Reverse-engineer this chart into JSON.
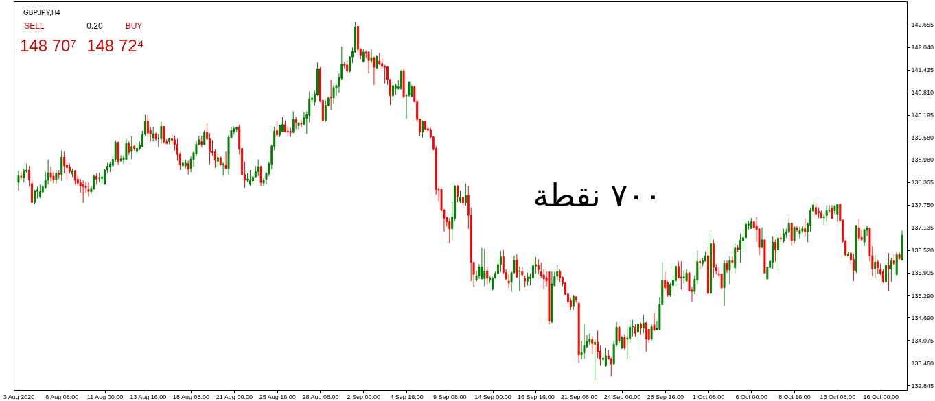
{
  "chart_data": {
    "type": "candlestick",
    "title": "GBPJPY,H4",
    "categories": [
      "3 Aug 2020",
      null,
      null,
      null,
      null,
      null,
      null,
      null,
      null,
      null,
      null,
      null,
      null,
      null,
      null,
      null,
      "6 Aug 08:00",
      null,
      null,
      null,
      null,
      null,
      null,
      null,
      null,
      null,
      null,
      null,
      null,
      null,
      null,
      null,
      "11 Aug 00:00",
      null,
      null,
      null,
      null,
      null,
      null,
      null,
      null,
      null,
      null,
      null,
      null,
      null,
      null,
      null,
      "13 Aug 16:00",
      null,
      null,
      null,
      null,
      null,
      null,
      null,
      null,
      null,
      null,
      null,
      null,
      null,
      null,
      null,
      "18 Aug 08:00",
      null,
      null,
      null,
      null,
      null,
      null,
      null,
      null,
      null,
      null,
      null,
      null,
      null,
      null,
      null,
      "21 Aug 00:00",
      null,
      null,
      null,
      null,
      null,
      null,
      null,
      null,
      null,
      null,
      null,
      null,
      null,
      null,
      null,
      "25 Aug 16:00",
      null,
      null,
      null,
      null,
      null,
      null,
      null,
      null,
      null,
      null,
      null,
      null,
      null,
      null,
      null,
      "28 Aug 08:00",
      null,
      null,
      null,
      null,
      null,
      null,
      null,
      null,
      null,
      null,
      null,
      null,
      null,
      null,
      null,
      "2 Sep 00:00",
      null,
      null,
      null,
      null,
      null,
      null,
      null,
      null,
      null,
      null,
      null,
      null,
      null,
      null,
      null,
      "4 Sep 16:00",
      null,
      null,
      null,
      null,
      null,
      null,
      null,
      null,
      null,
      null,
      null,
      null,
      null,
      null,
      null,
      "9 Sep 08:00",
      null,
      null,
      null,
      null,
      null,
      null,
      null,
      null,
      null,
      null,
      null,
      null,
      null,
      null,
      null,
      "14 Sep 00:00",
      null,
      null,
      null,
      null,
      null,
      null,
      null,
      null,
      null,
      null,
      null,
      null,
      null,
      null,
      null,
      "16 Sep 16:00",
      null,
      null,
      null,
      null,
      null,
      null,
      null,
      null,
      null,
      null,
      null,
      null,
      null,
      null,
      null,
      "21 Sep 08:00",
      null,
      null,
      null,
      null,
      null,
      null,
      null,
      null,
      null,
      null,
      null,
      null,
      null,
      null,
      null,
      "24 Sep 00:00",
      null,
      null,
      null,
      null,
      null,
      null,
      null,
      null,
      null,
      null,
      null,
      null,
      null,
      null,
      null,
      "28 Sep 16:00",
      null,
      null,
      null,
      null,
      null,
      null,
      null,
      null,
      null,
      null,
      null,
      null,
      null,
      null,
      null,
      "1 Oct 08:00",
      null,
      null,
      null,
      null,
      null,
      null,
      null,
      null,
      null,
      null,
      null,
      null,
      null,
      null,
      null,
      "6 Oct 00:00",
      null,
      null,
      null,
      null,
      null,
      null,
      null,
      null,
      null,
      null,
      null,
      null,
      null,
      null,
      null,
      "8 Oct 16:00",
      null,
      null,
      null,
      null,
      null,
      null,
      null,
      null,
      null,
      null,
      null,
      null,
      null,
      null,
      null,
      "13 Oct 08:00",
      null,
      null,
      null,
      null,
      null,
      null,
      null,
      null,
      null,
      null,
      null,
      null,
      null,
      null,
      null,
      "16 Oct 00:00",
      null,
      null,
      null,
      null,
      null,
      null,
      null,
      null
    ],
    "ohlc": [
      [
        138.36,
        138.68,
        138.14,
        138.54
      ],
      [
        138.53,
        138.64,
        138.45,
        138.51
      ],
      [
        138.49,
        138.73,
        138.36,
        138.68
      ],
      [
        138.66,
        138.87,
        138.61,
        138.7
      ],
      [
        138.7,
        138.81,
        138.24,
        138.42
      ],
      [
        138.33,
        138.42,
        137.81,
        137.82
      ],
      [
        137.82,
        138.16,
        137.77,
        138.14
      ],
      [
        138.12,
        138.24,
        137.92,
        138.16
      ],
      [
        137.98,
        138.3,
        137.93,
        138.11
      ],
      [
        138.1,
        138.3,
        138.06,
        138.24
      ],
      [
        138.22,
        138.64,
        138.2,
        138.43
      ],
      [
        138.42,
        138.98,
        138.3,
        138.62
      ],
      [
        138.62,
        138.79,
        138.39,
        138.51
      ],
      [
        138.53,
        138.64,
        138.34,
        138.43
      ],
      [
        138.43,
        138.7,
        138.33,
        138.61
      ],
      [
        138.61,
        138.7,
        138.45,
        138.58
      ],
      [
        138.58,
        139.23,
        138.41,
        139.05
      ],
      [
        139.05,
        139.2,
        138.61,
        138.81
      ],
      [
        138.84,
        138.89,
        138.45,
        138.76
      ],
      [
        138.78,
        138.86,
        138.61,
        138.66
      ],
      [
        138.59,
        138.73,
        138.51,
        138.68
      ],
      [
        138.68,
        138.7,
        138.3,
        138.42
      ],
      [
        138.45,
        138.54,
        138.26,
        138.34
      ],
      [
        138.36,
        138.45,
        138.08,
        138.26
      ],
      [
        138.3,
        138.42,
        137.81,
        138.25
      ],
      [
        138.26,
        138.36,
        138.08,
        138.22
      ],
      [
        138.17,
        138.36,
        137.98,
        138.12
      ],
      [
        138.11,
        138.26,
        138.04,
        138.2
      ],
      [
        138.18,
        138.57,
        138.17,
        138.53
      ],
      [
        138.53,
        138.61,
        138.3,
        138.45
      ],
      [
        138.47,
        138.62,
        138.36,
        138.49
      ],
      [
        138.47,
        138.54,
        138.33,
        138.51
      ],
      [
        138.31,
        138.72,
        138.31,
        138.7
      ],
      [
        138.7,
        138.89,
        138.61,
        138.8
      ],
      [
        138.78,
        138.92,
        138.64,
        138.86
      ],
      [
        138.82,
        139.07,
        138.79,
        138.99
      ],
      [
        138.99,
        139.51,
        138.92,
        139.45
      ],
      [
        139.45,
        139.47,
        138.84,
        138.92
      ],
      [
        138.95,
        139.1,
        138.92,
        139.0
      ],
      [
        138.98,
        139.1,
        138.87,
        139.03
      ],
      [
        138.99,
        139.54,
        138.98,
        139.42
      ],
      [
        139.42,
        139.48,
        139.11,
        139.18
      ],
      [
        139.2,
        139.62,
        138.99,
        139.34
      ],
      [
        139.34,
        139.37,
        139.23,
        139.28
      ],
      [
        139.2,
        139.42,
        139.14,
        139.29
      ],
      [
        139.28,
        139.47,
        139.24,
        139.37
      ],
      [
        139.34,
        139.76,
        139.32,
        139.67
      ],
      [
        139.67,
        140.2,
        139.63,
        140.03
      ],
      [
        140.04,
        140.2,
        139.6,
        139.7
      ],
      [
        139.78,
        139.87,
        139.48,
        139.68
      ],
      [
        139.57,
        139.87,
        139.48,
        139.68
      ],
      [
        139.68,
        139.72,
        139.5,
        139.54
      ],
      [
        139.55,
        139.68,
        139.32,
        139.55
      ],
      [
        139.54,
        140.01,
        139.42,
        139.88
      ],
      [
        139.88,
        139.88,
        139.42,
        139.47
      ],
      [
        139.47,
        139.54,
        139.4,
        139.42
      ],
      [
        139.47,
        139.57,
        139.4,
        139.56
      ],
      [
        139.55,
        139.65,
        139.42,
        139.51
      ],
      [
        139.52,
        139.63,
        139.23,
        139.39
      ],
      [
        139.4,
        139.55,
        138.95,
        139.12
      ],
      [
        139.14,
        139.17,
        138.7,
        138.84
      ],
      [
        138.82,
        138.98,
        138.79,
        138.89
      ],
      [
        138.81,
        138.98,
        138.74,
        138.89
      ],
      [
        138.87,
        138.95,
        138.57,
        138.72
      ],
      [
        138.74,
        139.07,
        138.64,
        138.99
      ],
      [
        138.98,
        139.2,
        138.79,
        139.17
      ],
      [
        139.14,
        139.49,
        139.07,
        139.4
      ],
      [
        139.4,
        139.63,
        139.37,
        139.52
      ],
      [
        139.47,
        139.63,
        139.32,
        139.39
      ],
      [
        139.39,
        139.78,
        139.37,
        139.73
      ],
      [
        139.73,
        139.96,
        139.53,
        139.54
      ],
      [
        139.55,
        139.7,
        138.86,
        139.19
      ],
      [
        139.2,
        139.51,
        139.09,
        139.17
      ],
      [
        139.19,
        139.26,
        138.76,
        138.97
      ],
      [
        138.93,
        139.14,
        138.79,
        139.04
      ],
      [
        139.03,
        139.07,
        138.82,
        138.84
      ],
      [
        138.84,
        138.91,
        138.54,
        138.86
      ],
      [
        138.84,
        139.2,
        138.74,
        138.74
      ],
      [
        138.74,
        139.65,
        138.57,
        139.59
      ],
      [
        139.57,
        139.85,
        139.55,
        139.78
      ],
      [
        139.75,
        139.88,
        139.67,
        139.82
      ],
      [
        139.81,
        139.88,
        139.73,
        139.85
      ],
      [
        139.87,
        139.93,
        139.12,
        139.26
      ],
      [
        139.28,
        139.3,
        138.56,
        138.56
      ],
      [
        138.57,
        138.92,
        138.22,
        138.42
      ],
      [
        138.42,
        138.61,
        138.37,
        138.45
      ],
      [
        138.31,
        138.7,
        138.26,
        138.42
      ],
      [
        138.4,
        138.57,
        138.3,
        138.51
      ],
      [
        138.51,
        138.81,
        138.49,
        138.65
      ],
      [
        138.65,
        138.98,
        138.53,
        138.79
      ],
      [
        138.79,
        138.82,
        138.25,
        138.36
      ],
      [
        138.34,
        138.48,
        138.25,
        138.42
      ],
      [
        138.44,
        138.64,
        138.31,
        138.61
      ],
      [
        138.59,
        138.92,
        138.53,
        138.87
      ],
      [
        138.86,
        139.39,
        138.72,
        139.35
      ],
      [
        139.34,
        139.88,
        139.23,
        139.76
      ],
      [
        139.77,
        140.03,
        139.59,
        139.65
      ],
      [
        139.65,
        139.92,
        139.6,
        139.91
      ],
      [
        139.75,
        140.14,
        139.73,
        139.93
      ],
      [
        139.93,
        140.05,
        139.72,
        139.73
      ],
      [
        139.75,
        139.88,
        139.62,
        139.73
      ],
      [
        139.75,
        139.84,
        139.6,
        139.72
      ],
      [
        139.72,
        140.29,
        139.7,
        140.07
      ],
      [
        140.07,
        140.14,
        139.81,
        139.99
      ],
      [
        139.9,
        139.99,
        139.8,
        139.98
      ],
      [
        139.97,
        140.05,
        139.85,
        139.94
      ],
      [
        139.94,
        140.27,
        139.91,
        140.12
      ],
      [
        140.1,
        140.29,
        139.68,
        140.2
      ],
      [
        140.18,
        140.83,
        139.99,
        140.63
      ],
      [
        140.61,
        140.76,
        140.53,
        140.65
      ],
      [
        140.55,
        140.85,
        140.45,
        140.76
      ],
      [
        140.74,
        141.62,
        140.71,
        141.45
      ],
      [
        141.45,
        141.49,
        140.54,
        140.56
      ],
      [
        140.59,
        140.6,
        139.99,
        140.05
      ],
      [
        140.05,
        140.59,
        140.01,
        140.46
      ],
      [
        140.45,
        140.69,
        140.43,
        140.65
      ],
      [
        140.68,
        141.15,
        140.34,
        140.66
      ],
      [
        140.66,
        141.01,
        140.49,
        140.94
      ],
      [
        140.92,
        141.02,
        140.71,
        140.99
      ],
      [
        140.97,
        141.32,
        140.8,
        141.21
      ],
      [
        141.19,
        142.05,
        141.14,
        141.57
      ],
      [
        141.57,
        141.63,
        141.46,
        141.54
      ],
      [
        141.55,
        141.66,
        141.35,
        141.38
      ],
      [
        141.38,
        141.8,
        141.35,
        141.77
      ],
      [
        141.77,
        142.03,
        141.6,
        141.92
      ],
      [
        141.9,
        142.72,
        141.88,
        142.58
      ],
      [
        142.6,
        142.61,
        141.88,
        141.97
      ],
      [
        141.98,
        142.0,
        141.71,
        141.82
      ],
      [
        141.65,
        141.97,
        141.61,
        141.9
      ],
      [
        141.9,
        141.94,
        141.74,
        141.87
      ],
      [
        141.9,
        141.92,
        141.32,
        141.67
      ],
      [
        141.66,
        141.97,
        141.6,
        141.75
      ],
      [
        141.75,
        141.78,
        141.01,
        141.49
      ],
      [
        141.47,
        141.82,
        141.44,
        141.79
      ],
      [
        141.66,
        141.88,
        141.55,
        141.57
      ],
      [
        141.59,
        141.72,
        141.46,
        141.51
      ],
      [
        141.52,
        141.55,
        141.05,
        141.49
      ],
      [
        141.5,
        141.52,
        141.01,
        141.16
      ],
      [
        141.16,
        141.17,
        140.46,
        140.71
      ],
      [
        140.71,
        141.02,
        140.57,
        140.99
      ],
      [
        140.91,
        141.04,
        140.74,
        141.0
      ],
      [
        140.91,
        141.14,
        140.88,
        140.96
      ],
      [
        140.91,
        141.41,
        140.88,
        141.38
      ],
      [
        141.38,
        141.44,
        140.65,
        140.69
      ],
      [
        140.71,
        140.76,
        140.09,
        140.73
      ],
      [
        140.73,
        141.1,
        140.69,
        141.1
      ],
      [
        140.69,
        141.01,
        140.68,
        140.96
      ],
      [
        140.96,
        140.99,
        140.54,
        140.55
      ],
      [
        140.55,
        140.6,
        139.99,
        140.07
      ],
      [
        140.08,
        140.08,
        139.62,
        139.73
      ],
      [
        139.73,
        140.05,
        139.57,
        140.03
      ],
      [
        140.03,
        140.03,
        139.79,
        139.81
      ],
      [
        139.82,
        139.85,
        139.72,
        139.78
      ],
      [
        139.79,
        139.84,
        139.55,
        139.59
      ],
      [
        139.6,
        139.6,
        139.23,
        139.26
      ],
      [
        139.28,
        139.35,
        138.02,
        138.17
      ],
      [
        138.18,
        138.22,
        137.85,
        138.16
      ],
      [
        138.17,
        138.2,
        137.58,
        137.6
      ],
      [
        137.61,
        137.64,
        137.02,
        137.39
      ],
      [
        137.41,
        137.42,
        137.16,
        137.29
      ],
      [
        137.3,
        137.39,
        136.71,
        137.1
      ],
      [
        137.1,
        137.83,
        136.77,
        137.42
      ],
      [
        137.39,
        138.29,
        137.31,
        138.26
      ],
      [
        138.26,
        138.29,
        137.83,
        137.98
      ],
      [
        137.86,
        138.14,
        137.8,
        137.95
      ],
      [
        137.95,
        137.97,
        137.73,
        137.81
      ],
      [
        137.81,
        138.33,
        137.73,
        138.01
      ],
      [
        138.01,
        138.26,
        137.1,
        137.47
      ],
      [
        137.48,
        137.68,
        135.68,
        136.19
      ],
      [
        136.19,
        136.19,
        135.52,
        135.86
      ],
      [
        135.71,
        135.96,
        135.66,
        135.83
      ],
      [
        135.83,
        136.14,
        135.74,
        136.06
      ],
      [
        135.74,
        136.58,
        135.74,
        136.06
      ],
      [
        135.75,
        136.56,
        135.54,
        135.95
      ],
      [
        135.95,
        136.08,
        135.58,
        135.76
      ],
      [
        135.72,
        135.81,
        135.63,
        135.77
      ],
      [
        135.46,
        135.79,
        135.43,
        135.77
      ],
      [
        135.77,
        135.94,
        135.75,
        135.89
      ],
      [
        135.88,
        136.25,
        135.83,
        136.13
      ],
      [
        136.13,
        136.5,
        135.93,
        136.34
      ],
      [
        136.34,
        136.54,
        135.88,
        135.91
      ],
      [
        135.91,
        136.0,
        135.71,
        135.74
      ],
      [
        135.68,
        135.86,
        135.49,
        135.63
      ],
      [
        135.65,
        135.94,
        135.38,
        135.91
      ],
      [
        135.91,
        136.37,
        135.88,
        136.24
      ],
      [
        136.25,
        136.41,
        135.77,
        135.79
      ],
      [
        135.94,
        136.08,
        135.41,
        135.96
      ],
      [
        135.94,
        136.06,
        135.81,
        135.85
      ],
      [
        135.75,
        135.83,
        135.52,
        135.68
      ],
      [
        135.68,
        135.91,
        135.56,
        135.79
      ],
      [
        135.75,
        135.88,
        135.56,
        135.79
      ],
      [
        135.77,
        136.44,
        135.69,
        136.1
      ],
      [
        136.08,
        136.33,
        135.88,
        136.13
      ],
      [
        136.11,
        136.27,
        135.86,
        135.99
      ],
      [
        135.93,
        136.18,
        135.77,
        135.83
      ],
      [
        135.85,
        136.0,
        135.46,
        135.74
      ],
      [
        135.77,
        135.94,
        135.54,
        135.69
      ],
      [
        135.93,
        135.94,
        134.51,
        134.59
      ],
      [
        134.57,
        135.94,
        134.54,
        135.6
      ],
      [
        135.56,
        135.93,
        135.54,
        135.81
      ],
      [
        135.81,
        136.11,
        135.71,
        135.94
      ],
      [
        135.94,
        135.99,
        135.65,
        135.77
      ],
      [
        135.78,
        135.81,
        135.54,
        135.61
      ],
      [
        135.63,
        135.65,
        135.3,
        135.32
      ],
      [
        135.33,
        135.37,
        135.02,
        135.13
      ],
      [
        135.15,
        135.21,
        134.9,
        134.98
      ],
      [
        134.99,
        135.3,
        134.9,
        135.27
      ],
      [
        135.25,
        135.27,
        135.09,
        135.17
      ],
      [
        135.08,
        135.1,
        133.46,
        133.67
      ],
      [
        133.67,
        134.06,
        133.56,
        133.74
      ],
      [
        133.73,
        134.52,
        133.57,
        133.92
      ],
      [
        133.9,
        134.21,
        133.86,
        134.04
      ],
      [
        134.03,
        134.26,
        133.93,
        134.11
      ],
      [
        134.09,
        134.18,
        133.69,
        133.98
      ],
      [
        133.96,
        134.09,
        132.98,
        134.02
      ],
      [
        134.02,
        134.34,
        133.59,
        133.76
      ],
      [
        133.78,
        133.92,
        133.38,
        133.56
      ],
      [
        133.55,
        133.68,
        133.48,
        133.59
      ],
      [
        133.38,
        133.87,
        133.34,
        133.65
      ],
      [
        133.65,
        133.81,
        133.55,
        133.56
      ],
      [
        133.57,
        133.61,
        133.09,
        133.43
      ],
      [
        133.43,
        134.06,
        133.4,
        133.96
      ],
      [
        133.94,
        134.57,
        133.9,
        134.43
      ],
      [
        134.43,
        134.46,
        133.99,
        134.06
      ],
      [
        133.86,
        134.19,
        133.84,
        134.15
      ],
      [
        134.15,
        134.24,
        133.81,
        133.87
      ],
      [
        134.1,
        134.43,
        133.57,
        134.13
      ],
      [
        134.12,
        134.62,
        133.99,
        134.43
      ],
      [
        134.44,
        134.62,
        134.18,
        134.46
      ],
      [
        134.43,
        134.51,
        134.17,
        134.26
      ],
      [
        134.29,
        134.55,
        134.04,
        134.51
      ],
      [
        134.52,
        134.55,
        134.24,
        134.4
      ],
      [
        134.4,
        134.77,
        134.26,
        134.54
      ],
      [
        134.54,
        134.57,
        133.76,
        134.11
      ],
      [
        134.37,
        134.38,
        134.01,
        134.09
      ],
      [
        134.11,
        134.52,
        134.06,
        134.44
      ],
      [
        134.49,
        134.83,
        134.34,
        134.34
      ],
      [
        134.36,
        134.59,
        134.34,
        134.4
      ],
      [
        134.37,
        135.24,
        134.34,
        135.05
      ],
      [
        135.04,
        136.19,
        135.04,
        135.71
      ],
      [
        135.71,
        135.93,
        135.43,
        135.5
      ],
      [
        135.63,
        135.68,
        135.25,
        135.3
      ],
      [
        135.29,
        135.63,
        135.25,
        135.58
      ],
      [
        135.56,
        135.74,
        135.4,
        135.71
      ],
      [
        135.69,
        136.1,
        135.55,
        136.08
      ],
      [
        136.08,
        136.21,
        135.75,
        135.77
      ],
      [
        135.79,
        136.22,
        135.45,
        135.76
      ],
      [
        135.77,
        135.97,
        135.61,
        135.8
      ],
      [
        135.68,
        136.02,
        135.66,
        135.9
      ],
      [
        135.9,
        135.93,
        135.4,
        135.42
      ],
      [
        135.44,
        135.52,
        135.13,
        135.4
      ],
      [
        135.4,
        135.83,
        135.33,
        135.73
      ],
      [
        135.71,
        136.52,
        135.6,
        136.21
      ],
      [
        136.21,
        136.27,
        136.01,
        136.19
      ],
      [
        136.16,
        136.32,
        136.08,
        136.23
      ],
      [
        136.22,
        136.49,
        136.22,
        136.37
      ],
      [
        136.37,
        136.6,
        135.3,
        135.35
      ],
      [
        135.35,
        136.97,
        135.32,
        136.7
      ],
      [
        136.7,
        136.81,
        135.77,
        136.05
      ],
      [
        136.05,
        136.14,
        135.86,
        135.96
      ],
      [
        135.88,
        136.05,
        135.8,
        135.85
      ],
      [
        135.87,
        135.87,
        135.48,
        135.5
      ],
      [
        135.5,
        136.24,
        135.0,
        136.16
      ],
      [
        136.16,
        136.24,
        135.9,
        135.98
      ],
      [
        135.98,
        136.36,
        135.6,
        136.24
      ],
      [
        136.24,
        136.35,
        136.15,
        136.19
      ],
      [
        136.04,
        136.7,
        135.9,
        136.58
      ],
      [
        136.58,
        136.66,
        136.46,
        136.54
      ],
      [
        136.54,
        136.97,
        136.18,
        136.79
      ],
      [
        136.77,
        136.99,
        136.55,
        136.86
      ],
      [
        136.86,
        137.31,
        136.85,
        137.23
      ],
      [
        137.2,
        137.31,
        137.08,
        137.23
      ],
      [
        137.11,
        137.39,
        137.1,
        137.29
      ],
      [
        137.29,
        137.31,
        137.12,
        137.14
      ],
      [
        137.17,
        137.42,
        136.75,
        137.08
      ],
      [
        137.1,
        137.11,
        136.38,
        136.59
      ],
      [
        136.59,
        137.14,
        136.58,
        136.8
      ],
      [
        136.8,
        136.81,
        135.9,
        135.9
      ],
      [
        135.74,
        136.06,
        135.73,
        136.06
      ],
      [
        136.05,
        136.24,
        136.04,
        136.22
      ],
      [
        136.19,
        136.89,
        136.02,
        136.74
      ],
      [
        136.74,
        136.81,
        136.21,
        136.53
      ],
      [
        136.53,
        136.94,
        135.96,
        136.85
      ],
      [
        136.85,
        136.97,
        136.74,
        136.83
      ],
      [
        136.76,
        137.1,
        136.72,
        136.97
      ],
      [
        136.95,
        137.1,
        136.86,
        137.02
      ],
      [
        137.0,
        137.39,
        136.99,
        137.25
      ],
      [
        137.25,
        137.27,
        136.64,
        136.78
      ],
      [
        136.78,
        137.18,
        136.7,
        137.14
      ],
      [
        137.12,
        137.18,
        137.02,
        137.07
      ],
      [
        136.97,
        137.16,
        136.83,
        137.05
      ],
      [
        137.04,
        137.17,
        136.99,
        137.1
      ],
      [
        137.11,
        137.37,
        136.89,
        137.02
      ],
      [
        137.02,
        137.27,
        136.74,
        137.23
      ],
      [
        137.2,
        137.67,
        137.02,
        137.6
      ],
      [
        137.58,
        137.83,
        137.56,
        137.75
      ],
      [
        137.68,
        137.81,
        137.45,
        137.5
      ],
      [
        137.58,
        137.68,
        137.39,
        137.53
      ],
      [
        137.53,
        137.6,
        137.39,
        137.4
      ],
      [
        137.4,
        137.5,
        137.2,
        137.43
      ],
      [
        137.46,
        137.74,
        137.29,
        137.59
      ],
      [
        137.59,
        137.74,
        137.53,
        137.6
      ],
      [
        137.66,
        137.74,
        137.36,
        137.39
      ],
      [
        137.59,
        137.75,
        137.5,
        137.72
      ],
      [
        137.5,
        137.77,
        137.29,
        137.76
      ],
      [
        137.77,
        137.79,
        137.29,
        137.32
      ],
      [
        137.34,
        137.34,
        136.72,
        136.76
      ],
      [
        136.78,
        136.78,
        136.36,
        136.39
      ],
      [
        136.36,
        136.46,
        136.36,
        136.42
      ],
      [
        136.44,
        136.46,
        136.15,
        136.25
      ],
      [
        136.27,
        136.42,
        135.68,
        135.97
      ],
      [
        135.95,
        137.2,
        135.9,
        137.19
      ],
      [
        137.13,
        137.36,
        136.77,
        136.85
      ],
      [
        136.87,
        137.06,
        136.77,
        136.81
      ],
      [
        136.74,
        137.1,
        136.63,
        137.08
      ],
      [
        137.06,
        137.19,
        136.91,
        137.13
      ],
      [
        137.12,
        137.13,
        136.22,
        136.36
      ],
      [
        136.37,
        136.63,
        135.82,
        136.01
      ],
      [
        136.01,
        136.39,
        135.77,
        136.2
      ],
      [
        136.2,
        136.25,
        135.88,
        136.04
      ],
      [
        135.99,
        136.15,
        135.84,
        135.88
      ],
      [
        135.94,
        136.01,
        135.63,
        135.66
      ],
      [
        135.66,
        136.29,
        135.65,
        136.11
      ],
      [
        136.11,
        136.44,
        135.42,
        136.01
      ],
      [
        136.01,
        136.32,
        135.66,
        136.23
      ],
      [
        136.23,
        136.42,
        136.11,
        136.15
      ],
      [
        135.86,
        136.47,
        135.83,
        136.4
      ],
      [
        136.4,
        136.46,
        136.25,
        136.29
      ],
      [
        136.25,
        137.05,
        136.25,
        136.92
      ]
    ],
    "colors": [
      "#008000",
      "#ff0000",
      "#008000",
      "#008000",
      "#ff0000",
      "#ff0000",
      "#008000",
      "#008000",
      "#008000",
      "#008000",
      "#008000",
      "#008000",
      "#ff0000",
      "#ff0000",
      "#008000",
      "#ff0000",
      "#008000",
      "#ff0000",
      "#ff0000",
      "#ff0000",
      "#008000",
      "#ff0000",
      "#ff0000",
      "#ff0000",
      "#ff0000",
      "#ff0000",
      "#ff0000",
      "#008000",
      "#008000",
      "#ff0000",
      "#008000",
      "#008000",
      "#008000",
      "#008000",
      "#008000",
      "#008000",
      "#008000",
      "#ff0000",
      "#008000",
      "#008000",
      "#008000",
      "#ff0000",
      "#008000",
      "#ff0000",
      "#008000",
      "#008000",
      "#008000",
      "#008000",
      "#ff0000",
      "#ff0000",
      "#008000",
      "#ff0000",
      "#000000",
      "#008000",
      "#ff0000",
      "#ff0000",
      "#008000",
      "#ff0000",
      "#ff0000",
      "#ff0000",
      "#ff0000",
      "#008000",
      "#008000",
      "#ff0000",
      "#008000",
      "#008000",
      "#008000",
      "#008000",
      "#ff0000",
      "#008000",
      "#ff0000",
      "#ff0000",
      "#ff0000",
      "#ff0000",
      "#008000",
      "#ff0000",
      "#008000",
      "#ff0000",
      "#008000",
      "#008000",
      "#008000",
      "#008000",
      "#ff0000",
      "#ff0000",
      "#ff0000",
      "#008000",
      "#008000",
      "#008000",
      "#008000",
      "#008000",
      "#ff0000",
      "#008000",
      "#008000",
      "#008000",
      "#008000",
      "#008000",
      "#ff0000",
      "#008000",
      "#008000",
      "#ff0000",
      "#ff0000",
      "#ff0000",
      "#008000",
      "#ff0000",
      "#008000",
      "#ff0000",
      "#008000",
      "#008000",
      "#008000",
      "#008000",
      "#008000",
      "#008000",
      "#ff0000",
      "#ff0000",
      "#008000",
      "#008000",
      "#ff0000",
      "#008000",
      "#008000",
      "#008000",
      "#008000",
      "#ff0000",
      "#ff0000",
      "#008000",
      "#008000",
      "#008000",
      "#ff0000",
      "#ff0000",
      "#008000",
      "#ff0000",
      "#ff0000",
      "#008000",
      "#ff0000",
      "#008000",
      "#ff0000",
      "#ff0000",
      "#ff0000",
      "#ff0000",
      "#ff0000",
      "#008000",
      "#008000",
      "#008000",
      "#008000",
      "#ff0000",
      "#008000",
      "#008000",
      "#008000",
      "#ff0000",
      "#ff0000",
      "#ff0000",
      "#008000",
      "#ff0000",
      "#ff0000",
      "#ff0000",
      "#ff0000",
      "#ff0000",
      "#ff0000",
      "#ff0000",
      "#ff0000",
      "#ff0000",
      "#ff0000",
      "#008000",
      "#008000",
      "#ff0000",
      "#008000",
      "#ff0000",
      "#008000",
      "#ff0000",
      "#ff0000",
      "#ff0000",
      "#008000",
      "#008000",
      "#008000",
      "#008000",
      "#ff0000",
      "#008000",
      "#008000",
      "#008000",
      "#008000",
      "#008000",
      "#ff0000",
      "#ff0000",
      "#ff0000",
      "#008000",
      "#008000",
      "#ff0000",
      "#008000",
      "#ff0000",
      "#ff0000",
      "#008000",
      "#008000",
      "#008000",
      "#008000",
      "#ff0000",
      "#ff0000",
      "#ff0000",
      "#ff0000",
      "#ff0000",
      "#008000",
      "#008000",
      "#008000",
      "#ff0000",
      "#ff0000",
      "#ff0000",
      "#ff0000",
      "#ff0000",
      "#008000",
      "#ff0000",
      "#ff0000",
      "#008000",
      "#008000",
      "#008000",
      "#008000",
      "#ff0000",
      "#008000",
      "#ff0000",
      "#ff0000",
      "#008000",
      "#008000",
      "#ff0000",
      "#ff0000",
      "#008000",
      "#008000",
      "#ff0000",
      "#008000",
      "#ff0000",
      "#008000",
      "#008000",
      "#008000",
      "#ff0000",
      "#008000",
      "#ff0000",
      "#008000",
      "#ff0000",
      "#ff0000",
      "#008000",
      "#ff0000",
      "#008000",
      "#008000",
      "#008000",
      "#ff0000",
      "#ff0000",
      "#008000",
      "#008000",
      "#008000",
      "#ff0000",
      "#ff0000",
      "#008000",
      "#008000",
      "#ff0000",
      "#ff0000",
      "#008000",
      "#008000",
      "#ff0000",
      "#008000",
      "#008000",
      "#ff0000",
      "#008000",
      "#ff0000",
      "#ff0000",
      "#ff0000",
      "#ff0000",
      "#008000",
      "#ff0000",
      "#008000",
      "#ff0000",
      "#008000",
      "#ff0000",
      "#008000",
      "#008000",
      "#008000",
      "#008000",
      "#008000",
      "#ff0000",
      "#ff0000",
      "#ff0000",
      "#008000",
      "#ff0000",
      "#008000",
      "#008000",
      "#008000",
      "#ff0000",
      "#008000",
      "#ff0000",
      "#008000",
      "#008000",
      "#008000",
      "#ff0000",
      "#008000",
      "#ff0000",
      "#008000",
      "#008000",
      "#ff0000",
      "#008000",
      "#008000",
      "#008000",
      "#ff0000",
      "#ff0000",
      "#ff0000",
      "#008000",
      "#008000",
      "#008000",
      "#ff0000",
      "#008000",
      "#008000",
      "#ff0000",
      "#ff0000",
      "#ff0000",
      "#008000",
      "#ff0000",
      "#ff0000",
      "#008000",
      "#ff0000",
      "#ff0000",
      "#008000",
      "#008000",
      "#ff0000",
      "#ff0000",
      "#008000",
      "#ff0000",
      "#ff0000",
      "#ff0000",
      "#008000",
      "#ff0000",
      "#008000",
      "#ff0000",
      "#008000",
      "#ff0000",
      "#008000"
    ],
    "ylim": [
      132.72,
      143.28
    ],
    "yticks": [
      142.655,
      {
        "value": 142.04,
        "label": "142.040"
      },
      141.425,
      {
        "value": 140.81,
        "label": "140.810"
      },
      140.195,
      {
        "value": 139.58,
        "label": "139.580"
      },
      {
        "value": 138.98,
        "label": "138.980"
      },
      138.365,
      {
        "value": 137.75,
        "label": "137.750"
      },
      137.135,
      {
        "value": 136.52,
        "label": "136.520"
      },
      135.905,
      {
        "value": 135.29,
        "label": "135.290"
      },
      {
        "value": 134.69,
        "label": "134.690"
      },
      134.075,
      {
        "value": 133.46,
        "label": "133.460"
      },
      132.845
    ],
    "annotations": [
      "SELL",
      "0.20",
      "BUY",
      "148 70⁷",
      "148 72⁴",
      "٧٠٠ نقطة"
    ]
  }
}
